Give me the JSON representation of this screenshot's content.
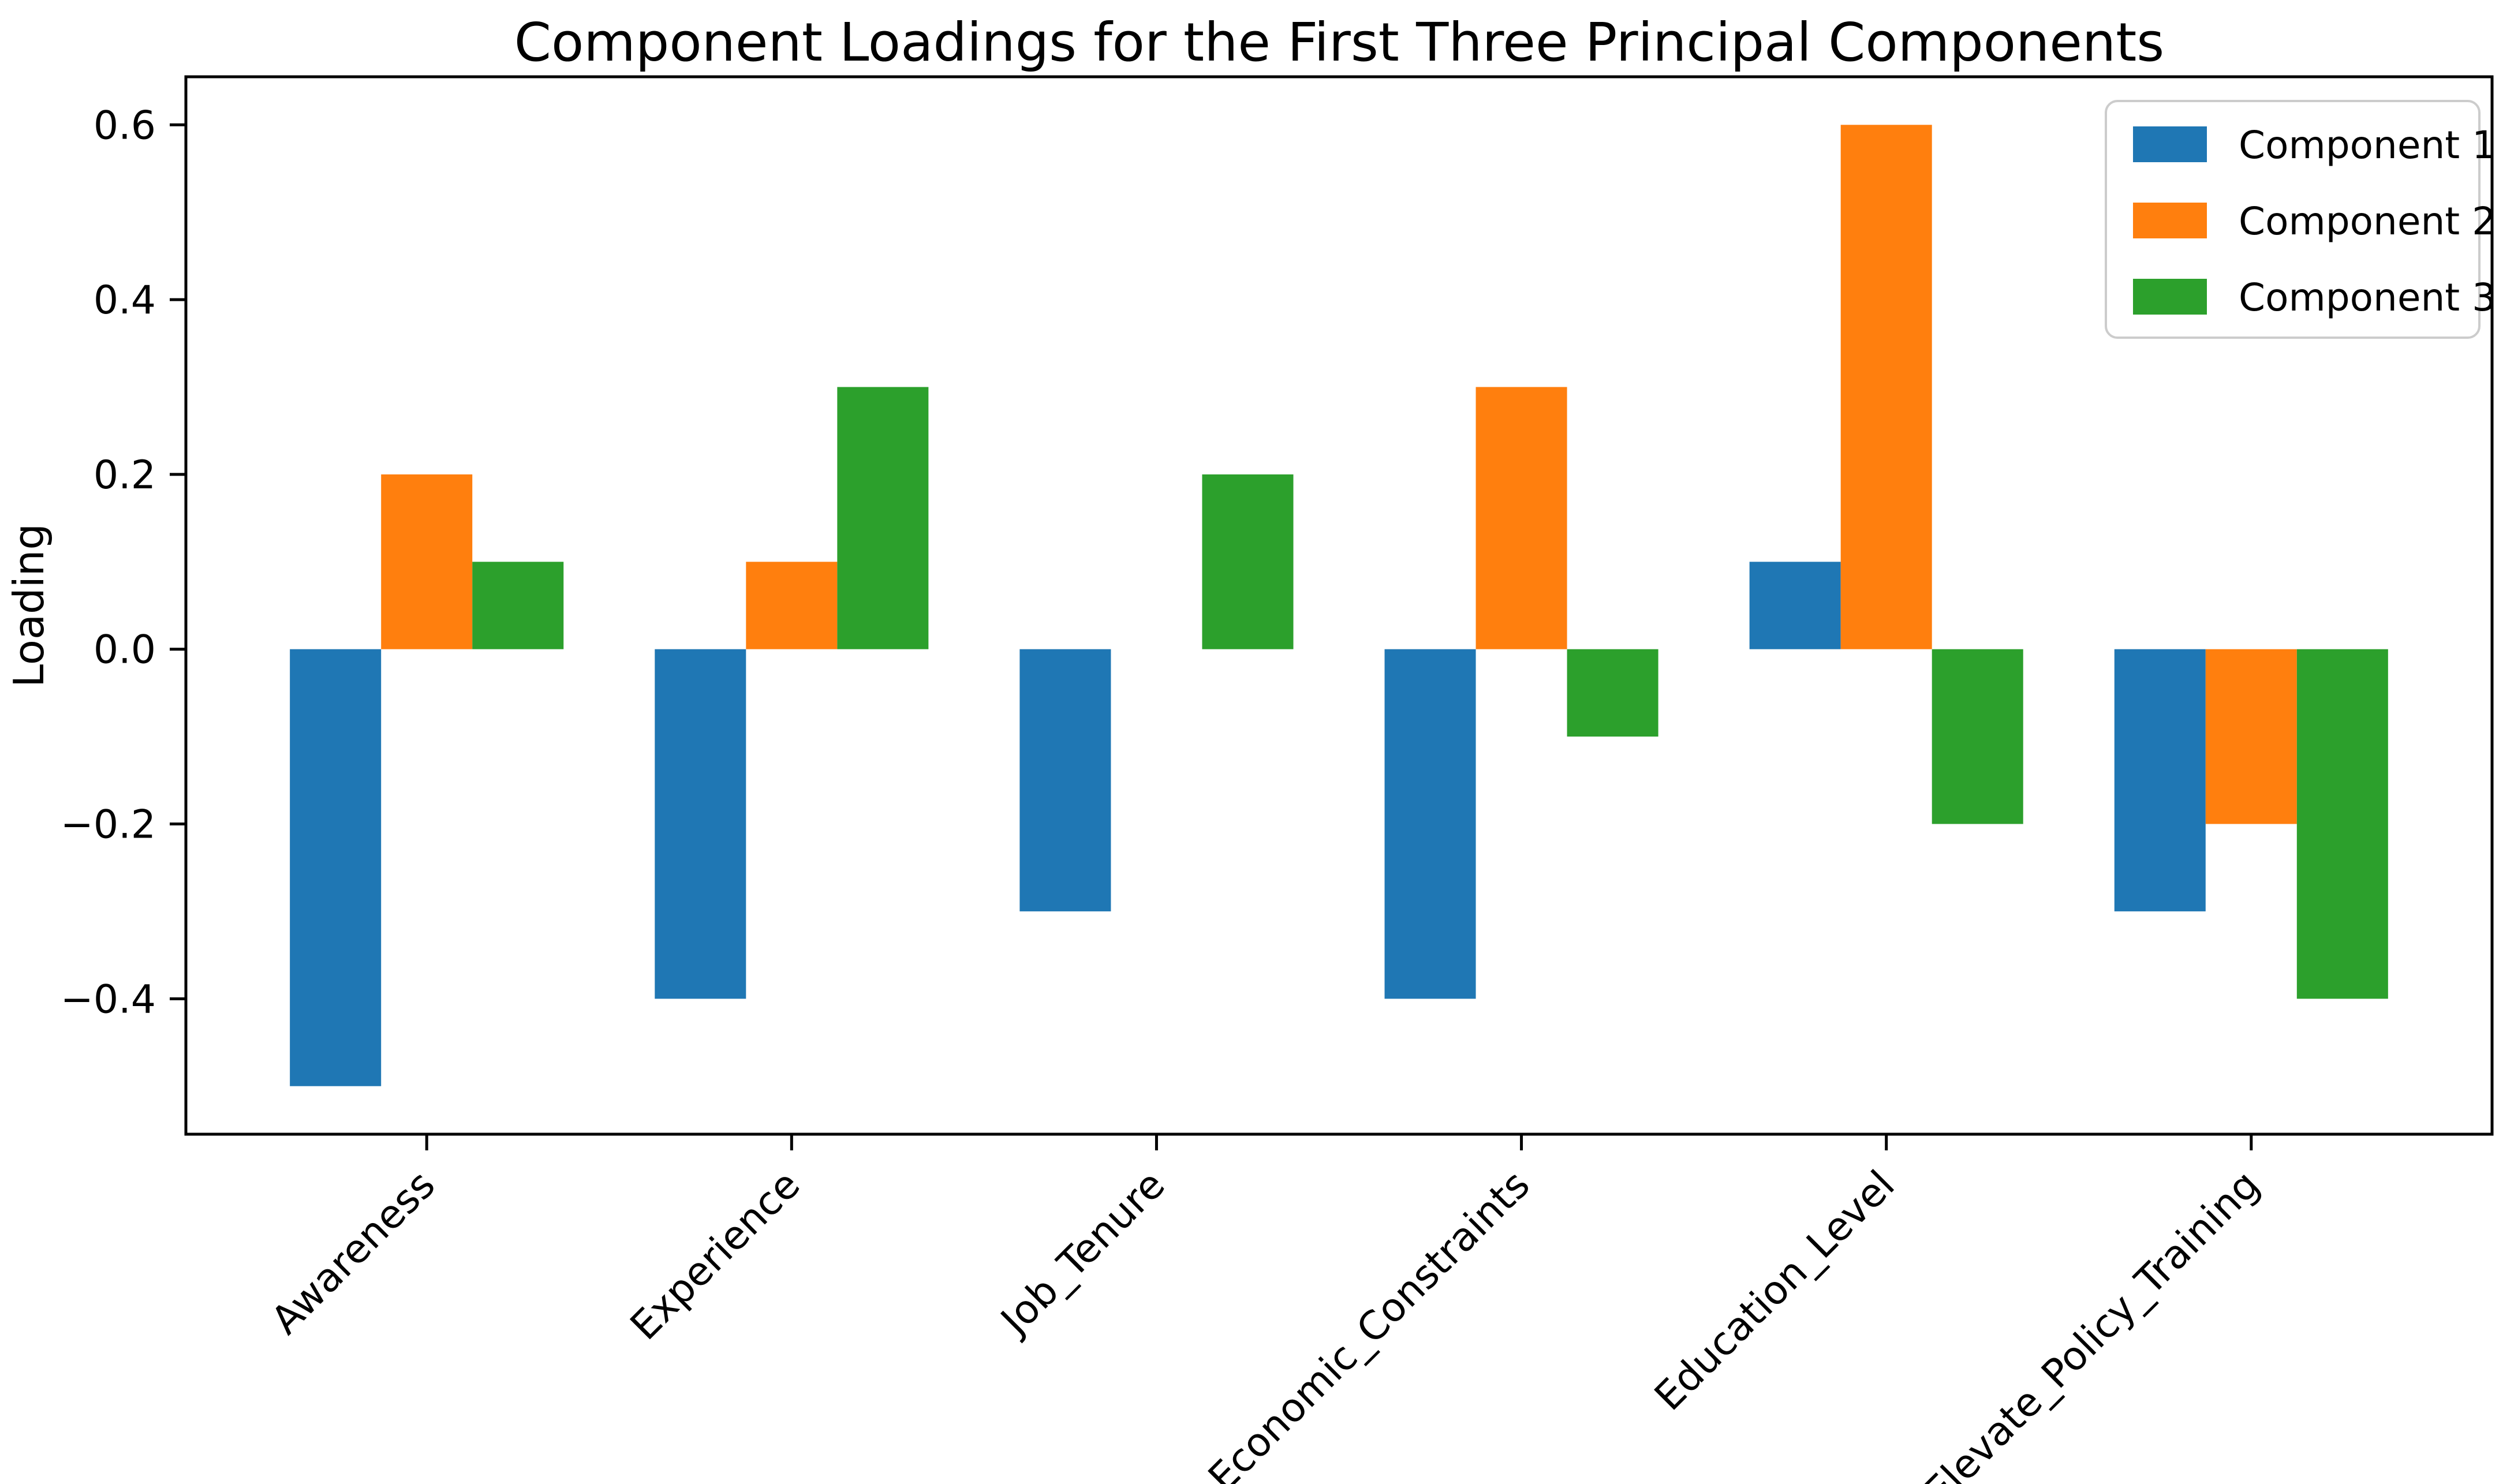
{
  "figure": {
    "background": "#ffffff",
    "axis_color": "#000000",
    "text_color": "#000000",
    "legend_border_color": "#cccccc"
  },
  "chart_data": {
    "type": "bar",
    "title": "Component Loadings for the First Three Principal Components",
    "xlabel": "",
    "ylabel": "Loading",
    "categories": [
      "Awareness",
      "Experience",
      "Job_Tenure",
      "Economic_Constraints",
      "Education_Level",
      "Elevate_Policy_Training"
    ],
    "series": [
      {
        "name": "Component 1",
        "color": "#1f77b4",
        "values": [
          -0.5,
          -0.4,
          -0.3,
          -0.4,
          0.1,
          -0.3
        ]
      },
      {
        "name": "Component 2",
        "color": "#ff7f0e",
        "values": [
          0.2,
          0.1,
          0.0,
          0.3,
          0.6,
          -0.2
        ]
      },
      {
        "name": "Component 3",
        "color": "#2ca02c",
        "values": [
          0.1,
          0.3,
          0.2,
          -0.1,
          -0.2,
          -0.4
        ]
      }
    ],
    "ylim": [
      -0.555,
      0.655
    ],
    "yticks": [
      0.6,
      0.4,
      0.2,
      0.0,
      -0.2,
      -0.4
    ],
    "ytick_labels": [
      "0.6",
      "0.4",
      "0.2",
      "0.0",
      "−0.2",
      "−0.4"
    ],
    "bar_width": 0.25,
    "group_spacing": 1.0,
    "xtick_rotation_deg": 45,
    "grid": false,
    "legend_position": "upper right"
  }
}
